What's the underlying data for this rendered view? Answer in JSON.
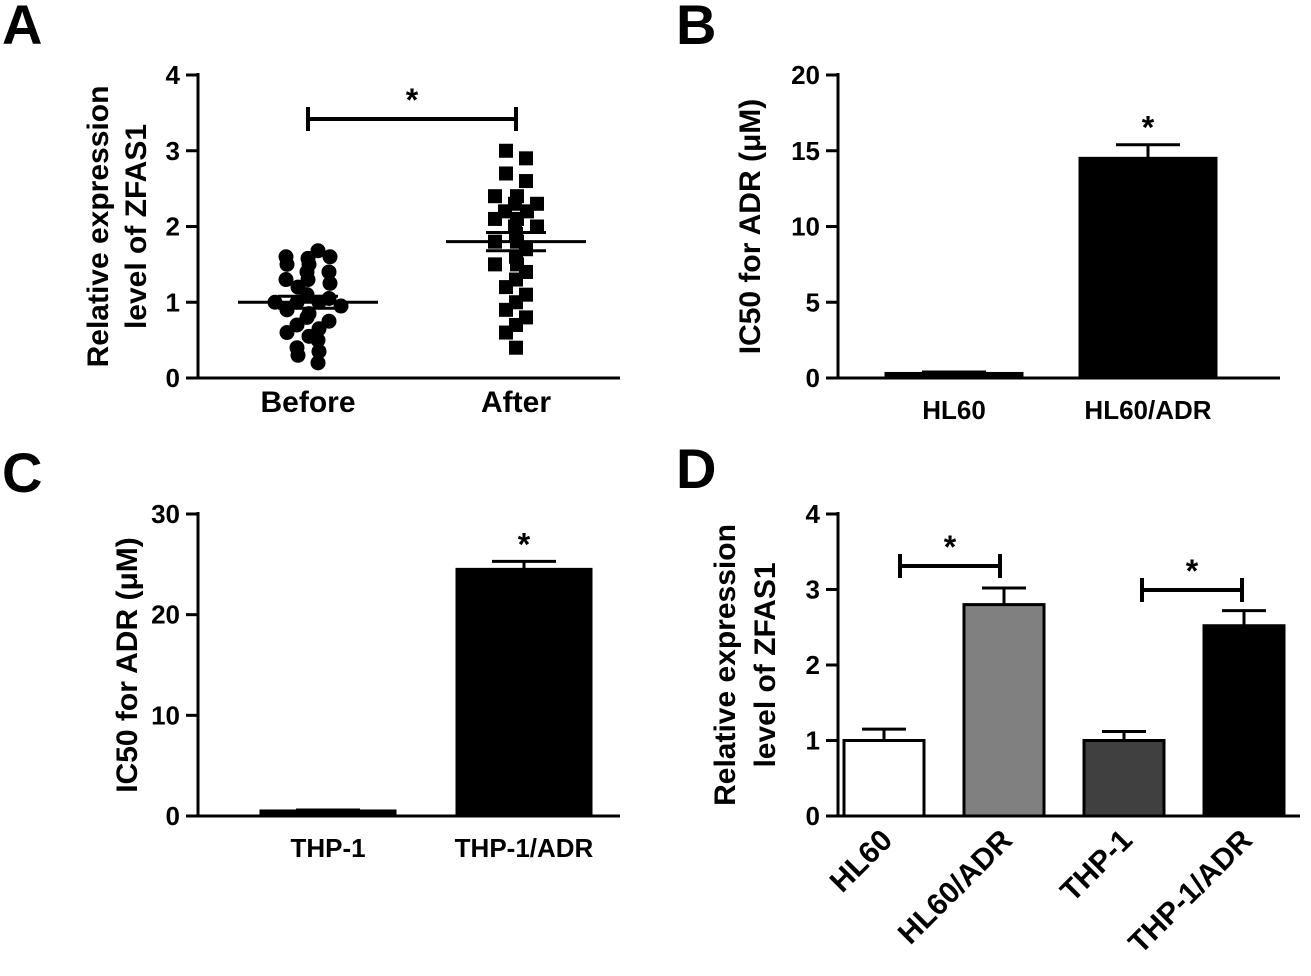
{
  "chart_data": [
    {
      "panel": "A",
      "type": "scatter",
      "ylabel": [
        "Relative expression",
        "level of ZFAS1"
      ],
      "categories": [
        "Before",
        "After"
      ],
      "ylim": [
        0,
        4
      ],
      "yticks": [
        "0",
        "1",
        "2",
        "3",
        "4"
      ],
      "mean": [
        1.0,
        1.8
      ],
      "sem": [
        0.08,
        0.12
      ],
      "markers": [
        "circle",
        "square"
      ],
      "points": [
        [
          1.68,
          1.6,
          1.58,
          1.6,
          1.5,
          1.5,
          1.4,
          1.4,
          1.3,
          1.3,
          1.25,
          1.2,
          1.1,
          1.05,
          1.0,
          1.0,
          1.0,
          0.95,
          0.9,
          0.85,
          0.8,
          0.75,
          0.7,
          0.65,
          0.6,
          0.55,
          0.5,
          0.4,
          0.35,
          0.3,
          0.2
        ],
        [
          3.0,
          2.9,
          2.7,
          2.6,
          2.4,
          2.4,
          2.3,
          2.3,
          2.2,
          2.2,
          2.1,
          2.1,
          2.0,
          2.0,
          1.9,
          1.8,
          1.8,
          1.7,
          1.6,
          1.5,
          1.5,
          1.4,
          1.3,
          1.2,
          1.1,
          1.0,
          0.9,
          0.8,
          0.7,
          0.6,
          0.4
        ]
      ],
      "significance": "*"
    },
    {
      "panel": "B",
      "type": "bar",
      "ylabel": "IC50 for ADR (μM)",
      "categories": [
        "HL60",
        "HL60/ADR"
      ],
      "values": [
        0.3,
        14.5
      ],
      "errors": [
        0.1,
        0.9
      ],
      "ylim": [
        0,
        20
      ],
      "yticks": [
        "0",
        "5",
        "10",
        "15",
        "20"
      ],
      "colors": [
        "#000000",
        "#000000"
      ],
      "significance": "*"
    },
    {
      "panel": "C",
      "type": "bar",
      "ylabel": "IC50 for ADR (μM)",
      "categories": [
        "THP-1",
        "THP-1/ADR"
      ],
      "values": [
        0.5,
        24.5
      ],
      "errors": [
        0.1,
        0.8
      ],
      "ylim": [
        0,
        30
      ],
      "yticks": [
        "0",
        "10",
        "20",
        "30"
      ],
      "colors": [
        "#000000",
        "#000000"
      ],
      "significance": "*"
    },
    {
      "panel": "D",
      "type": "bar",
      "ylabel": [
        "Relative expression",
        "level of ZFAS1"
      ],
      "categories": [
        "HL60",
        "HL60/ADR",
        "THP-1",
        "THP-1/ADR"
      ],
      "values": [
        1.0,
        2.8,
        1.0,
        2.52
      ],
      "errors": [
        0.15,
        0.22,
        0.12,
        0.2
      ],
      "ylim": [
        0,
        4
      ],
      "yticks": [
        "0",
        "1",
        "2",
        "3",
        "4"
      ],
      "colors": [
        "#ffffff",
        "#808080",
        "#404040",
        "#000000"
      ],
      "significance": [
        "*",
        "*"
      ]
    }
  ]
}
